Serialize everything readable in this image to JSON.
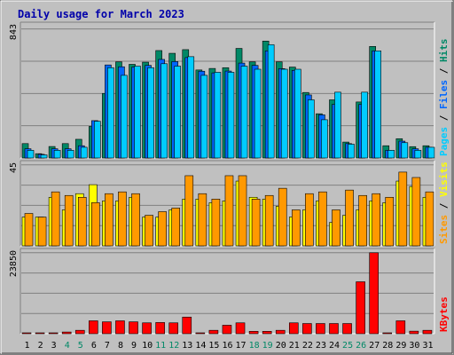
{
  "chart_data": {
    "type": "bar",
    "title": "Daily usage for March 2023",
    "categories": [
      "1",
      "2",
      "3",
      "4",
      "5",
      "6",
      "7",
      "8",
      "9",
      "10",
      "11",
      "12",
      "13",
      "14",
      "15",
      "16",
      "17",
      "18",
      "19",
      "20",
      "21",
      "22",
      "23",
      "24",
      "25",
      "26",
      "27",
      "28",
      "29",
      "30",
      "31"
    ],
    "weekend_days": [
      "4",
      "5",
      "11",
      "12",
      "18",
      "19",
      "25",
      "26"
    ],
    "panels": [
      {
        "max_label": "843",
        "ylim": [
          0,
          843
        ],
        "axis_label": [
          {
            "text": "Pages",
            "color": "#00ccff"
          },
          {
            "text": " / ",
            "color": "#000000"
          },
          {
            "text": "Files",
            "color": "#0066ff"
          },
          {
            "text": " / ",
            "color": "#000000"
          },
          {
            "text": "Hits",
            "color": "#008866"
          }
        ],
        "series": [
          {
            "name": "Hits",
            "color": "#008866",
            "values": [
              94,
              28,
              75,
              94,
              122,
              206,
              422,
              628,
              612,
              626,
              702,
              684,
              708,
              575,
              585,
              590,
              716,
              628,
              764,
              628,
              594,
              428,
              289,
              380,
              104,
              366,
              729,
              80,
              126,
              74,
              80
            ]
          },
          {
            "name": "Files",
            "color": "#0066ff",
            "values": [
              60,
              24,
              60,
              60,
              80,
              244,
              608,
              596,
              594,
              605,
              644,
              630,
              656,
              567,
              556,
              568,
              620,
              605,
              700,
              584,
              572,
              412,
              282,
              350,
              94,
              350,
              700,
              50,
              110,
              60,
              70
            ]
          },
          {
            "name": "Pages",
            "color": "#00ccff",
            "values": [
              50,
              20,
              50,
              50,
              70,
              240,
              590,
              540,
              600,
              590,
              616,
              600,
              662,
              540,
              560,
              560,
              600,
              580,
              740,
              580,
              580,
              380,
              250,
              430,
              90,
              430,
              700,
              50,
              100,
              50,
              70
            ]
          }
        ]
      },
      {
        "max_label": "45",
        "ylim": [
          0,
          45
        ],
        "axis_label": [
          {
            "text": "Sites",
            "color": "#ff9900"
          },
          {
            "text": " / ",
            "color": "#000000"
          },
          {
            "text": "Visits",
            "color": "#ffff00"
          }
        ],
        "series": [
          {
            "name": "Visits",
            "color": "#ffff00",
            "values": [
              16,
              16,
              27,
              20,
              29,
              34,
              25,
              25,
              27,
              16,
              16,
              20,
              26,
              26,
              24,
              25,
              36,
              27,
              26,
              22,
              16,
              20,
              25,
              13,
              17,
              20,
              25,
              24,
              36,
              33,
              27
            ]
          },
          {
            "name": "Sites",
            "color": "#ff9900",
            "values": [
              18,
              16,
              30,
              28,
              27,
              24,
              29,
              30,
              29,
              17,
              19,
              21,
              39,
              29,
              26,
              39,
              39,
              26,
              28,
              32,
              20,
              29,
              30,
              20,
              31,
              28,
              29,
              27,
              41,
              38,
              30
            ]
          }
        ]
      },
      {
        "max_label": "23850",
        "ylim": [
          0,
          23850
        ],
        "axis_label": [
          {
            "text": "KBytes",
            "color": "#ff0000"
          }
        ],
        "series": [
          {
            "name": "KBytes",
            "color": "#ff0000",
            "values": [
              250,
              250,
              250,
              500,
              1000,
              3800,
              3500,
              3800,
              3500,
              3200,
              3300,
              3200,
              4900,
              250,
              1000,
              2500,
              3200,
              700,
              700,
              1000,
              3200,
              3000,
              3000,
              3000,
              3000,
              15300,
              23850,
              250,
              3800,
              750,
              1000
            ]
          }
        ]
      }
    ]
  }
}
